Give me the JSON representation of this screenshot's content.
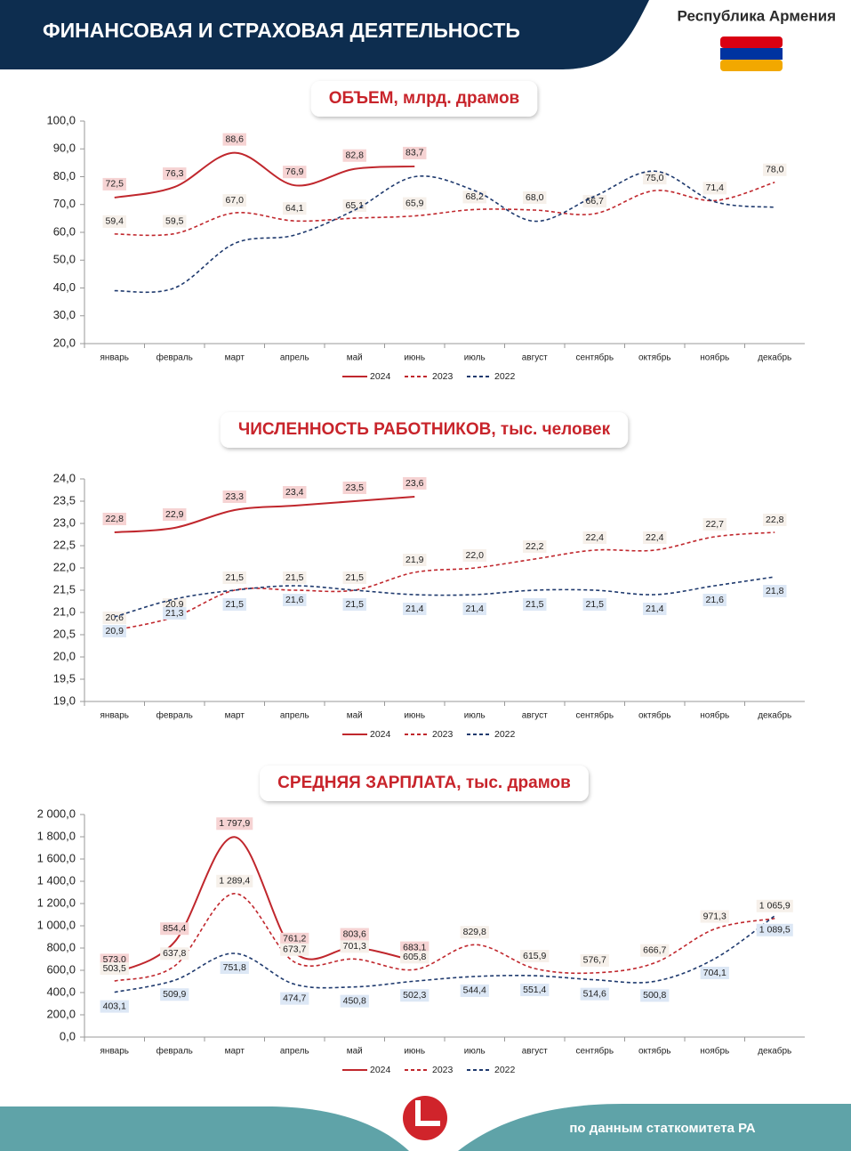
{
  "header": {
    "title": "ФИНАНСОВАЯ И СТРАХОВАЯ ДЕЯТЕЛЬНОСТЬ",
    "country": "Республика Армения"
  },
  "footer": {
    "source": "по данным статкомитета РА"
  },
  "chart_data": [
    {
      "type": "line",
      "title": "ОБЪЕМ, млрд. драмов",
      "categories": [
        "январь",
        "февраль",
        "март",
        "апрель",
        "май",
        "июнь",
        "июль",
        "август",
        "сентябрь",
        "октябрь",
        "ноябрь",
        "декабрь"
      ],
      "ylim": [
        20,
        100
      ],
      "yticks": [
        {
          "value": 20,
          "label": "20,0"
        },
        {
          "value": 30,
          "label": "30,0"
        },
        {
          "value": 40,
          "label": "40,0"
        },
        {
          "value": 50,
          "label": "50,0"
        },
        {
          "value": 60,
          "label": "60,0"
        },
        {
          "value": 70,
          "label": "70,0"
        },
        {
          "value": 80,
          "label": "80,0"
        },
        {
          "value": 90,
          "label": "90,0"
        },
        {
          "value": 100,
          "label": "100,0"
        }
      ],
      "series": [
        {
          "name": "2024",
          "color": "#c0272d",
          "dash": "solid",
          "values": [
            72.5,
            76.3,
            88.6,
            76.9,
            82.8,
            83.7,
            null,
            null,
            null,
            null,
            null,
            null
          ],
          "value_labels": [
            "72,5",
            "76,3",
            "88,6",
            "76,9",
            "82,8",
            "83,7",
            null,
            null,
            null,
            null,
            null,
            null
          ]
        },
        {
          "name": "2023",
          "color": "#c0272d",
          "dash": "dashed",
          "values": [
            59.4,
            59.5,
            67.0,
            64.1,
            65.1,
            65.9,
            68.2,
            68.0,
            66.7,
            75.0,
            71.4,
            78.0
          ],
          "value_labels": [
            "59,4",
            "59,5",
            "67,0",
            "64,1",
            "65,1",
            "65,9",
            "68,2",
            "68,0",
            "66,7",
            "75,0",
            "71,4",
            "78,0"
          ]
        },
        {
          "name": "2022",
          "color": "#1f3a6e",
          "dash": "dashed",
          "values": [
            39,
            40,
            56,
            59,
            68,
            80,
            75,
            64,
            73,
            82,
            71,
            69
          ]
        }
      ]
    },
    {
      "type": "line",
      "title": "ЧИСЛЕННОСТЬ РАБОТНИКОВ, тыс. человек",
      "categories": [
        "январь",
        "февраль",
        "март",
        "апрель",
        "май",
        "июнь",
        "июль",
        "август",
        "сентябрь",
        "октябрь",
        "ноябрь",
        "декабрь"
      ],
      "ylim": [
        19,
        24
      ],
      "yticks": [
        {
          "value": 19,
          "label": "19,0"
        },
        {
          "value": 19.5,
          "label": "19,5"
        },
        {
          "value": 20,
          "label": "20,0"
        },
        {
          "value": 20.5,
          "label": "20,5"
        },
        {
          "value": 21,
          "label": "21,0"
        },
        {
          "value": 21.5,
          "label": "21,5"
        },
        {
          "value": 22,
          "label": "22,0"
        },
        {
          "value": 22.5,
          "label": "22,5"
        },
        {
          "value": 23,
          "label": "23,0"
        },
        {
          "value": 23.5,
          "label": "23,5"
        },
        {
          "value": 24,
          "label": "24,0"
        }
      ],
      "series": [
        {
          "name": "2024",
          "color": "#c0272d",
          "dash": "solid",
          "values": [
            22.8,
            22.9,
            23.3,
            23.4,
            23.5,
            23.6,
            null,
            null,
            null,
            null,
            null,
            null
          ],
          "value_labels": [
            "22,8",
            "22,9",
            "23,3",
            "23,4",
            "23,5",
            "23,6",
            null,
            null,
            null,
            null,
            null,
            null
          ]
        },
        {
          "name": "2023",
          "color": "#c0272d",
          "dash": "dashed",
          "values": [
            20.6,
            20.9,
            21.5,
            21.5,
            21.5,
            21.9,
            22.0,
            22.2,
            22.4,
            22.4,
            22.7,
            22.8
          ],
          "value_labels": [
            "20,6",
            "20,9",
            "21,5",
            "21,5",
            "21,5",
            "21,9",
            "22,0",
            "22,2",
            "22,4",
            "22,4",
            "22,7",
            "22,8"
          ]
        },
        {
          "name": "2022",
          "color": "#1f3a6e",
          "dash": "dashed",
          "values": [
            20.9,
            21.3,
            21.5,
            21.6,
            21.5,
            21.4,
            21.4,
            21.5,
            21.5,
            21.4,
            21.6,
            21.8
          ],
          "value_labels": [
            "20,9",
            "21,3",
            "21,5",
            "21,6",
            "21,5",
            "21,4",
            "21,4",
            "21,5",
            "21,5",
            "21,4",
            "21,6",
            "21,8"
          ]
        }
      ]
    },
    {
      "type": "line",
      "title": "СРЕДНЯЯ ЗАРПЛАТА, тыс. драмов",
      "categories": [
        "январь",
        "февраль",
        "март",
        "апрель",
        "май",
        "июнь",
        "июль",
        "август",
        "сентябрь",
        "октябрь",
        "ноябрь",
        "декабрь"
      ],
      "ylim": [
        0,
        2000
      ],
      "yticks": [
        {
          "value": 0,
          "label": "0,0"
        },
        {
          "value": 200,
          "label": "200,0"
        },
        {
          "value": 400,
          "label": "400,0"
        },
        {
          "value": 600,
          "label": "600,0"
        },
        {
          "value": 800,
          "label": "800,0"
        },
        {
          "value": 1000,
          "label": "1 000,0"
        },
        {
          "value": 1200,
          "label": "1 200,0"
        },
        {
          "value": 1400,
          "label": "1 400,0"
        },
        {
          "value": 1600,
          "label": "1 600,0"
        },
        {
          "value": 1800,
          "label": "1 800,0"
        },
        {
          "value": 2000,
          "label": "2 000,0"
        }
      ],
      "series": [
        {
          "name": "2024",
          "color": "#c0272d",
          "dash": "solid",
          "values": [
            573.0,
            854.4,
            1797.9,
            761.2,
            803.6,
            683.1,
            null,
            null,
            null,
            null,
            null,
            null
          ],
          "value_labels": [
            "573,0",
            "854,4",
            "1 797,9",
            "761,2",
            "803,6",
            "683,1",
            null,
            null,
            null,
            null,
            null,
            null
          ]
        },
        {
          "name": "2023",
          "color": "#c0272d",
          "dash": "dashed",
          "values": [
            503.5,
            637.8,
            1289.4,
            673.7,
            701.3,
            605.8,
            829.8,
            615.9,
            576.7,
            666.7,
            971.3,
            1065.9
          ],
          "value_labels": [
            "503,5",
            "637,8",
            "1 289,4",
            "673,7",
            "701,3",
            "605,8",
            "829,8",
            "615,9",
            "576,7",
            "666,7",
            "971,3",
            "1 065,9"
          ]
        },
        {
          "name": "2022",
          "color": "#1f3a6e",
          "dash": "dashed",
          "values": [
            403.1,
            509.9,
            751.8,
            474.7,
            450.8,
            502.3,
            544.4,
            551.4,
            514.6,
            500.8,
            704.1,
            1089.5
          ],
          "value_labels": [
            "403,1",
            "509,9",
            "751,8",
            "474,7",
            "450,8",
            "502,3",
            "544,4",
            "551,4",
            "514,6",
            "500,8",
            "704,1",
            "1 089,5"
          ]
        }
      ]
    }
  ]
}
